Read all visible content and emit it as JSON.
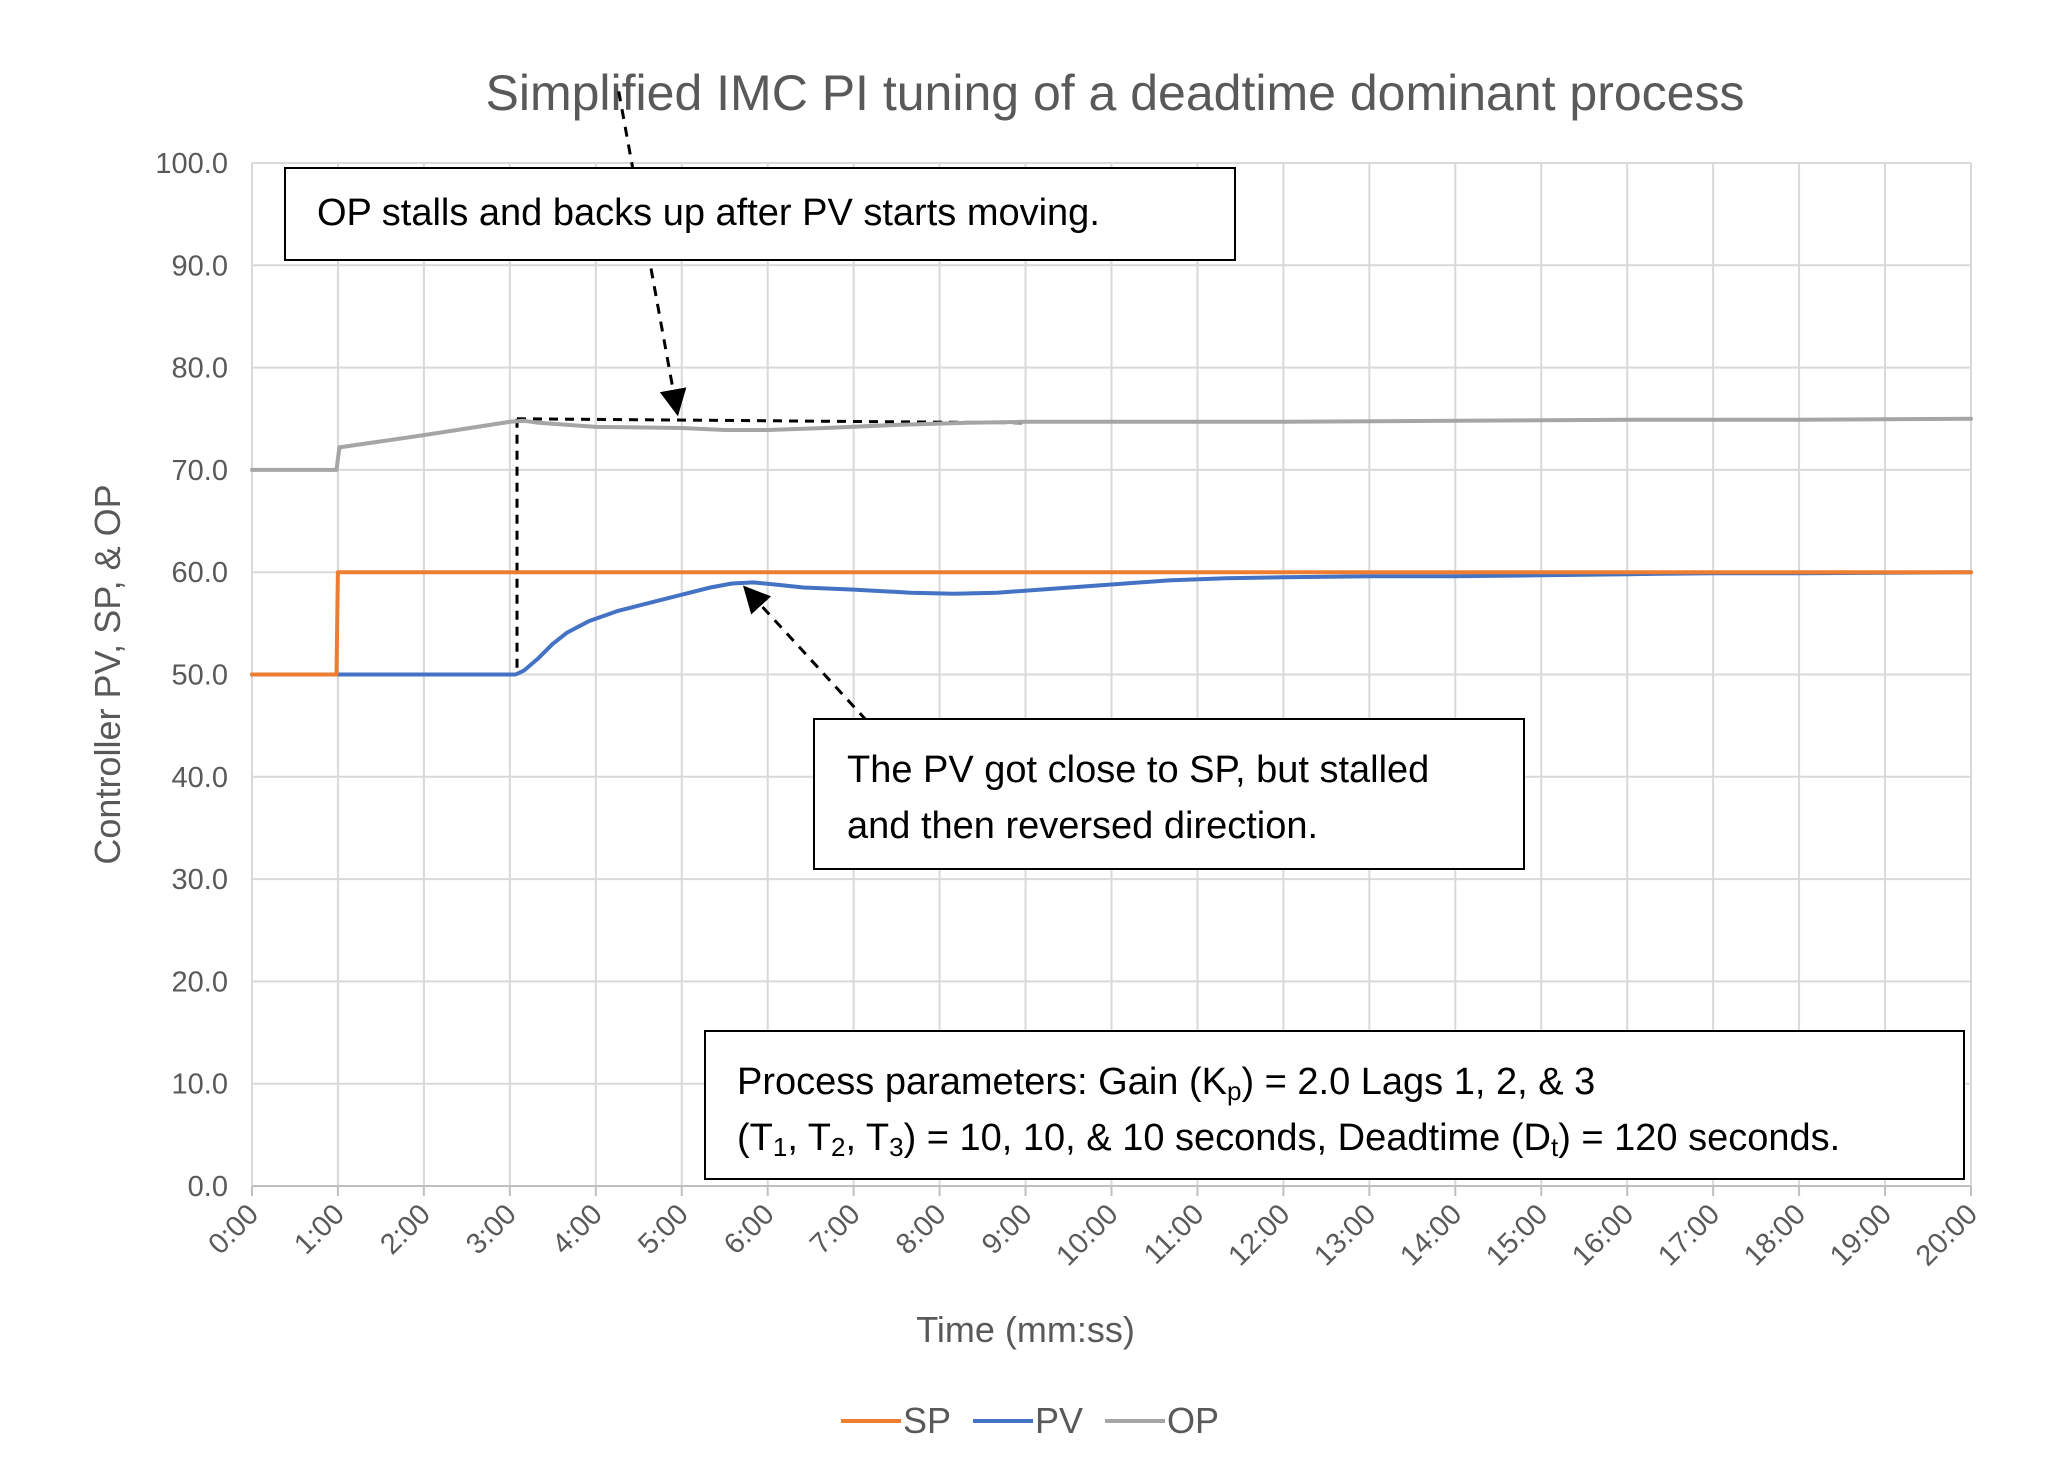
{
  "chart_data": {
    "type": "line",
    "title": "Simplified IMC PI tuning of a deadtime dominant process",
    "xlabel": "Time (mm:ss)",
    "ylabel": "Controller PV, SP, & OP",
    "xlim": [
      0,
      1200
    ],
    "ylim": [
      0,
      100
    ],
    "x_tick_labels": [
      "0:00",
      "1:00",
      "2:00",
      "3:00",
      "4:00",
      "5:00",
      "6:00",
      "7:00",
      "8:00",
      "9:00",
      "10:00",
      "11:00",
      "12:00",
      "13:00",
      "14:00",
      "15:00",
      "16:00",
      "17:00",
      "18:00",
      "19:00",
      "20:00"
    ],
    "y_tick_labels": [
      "0.0",
      "10.0",
      "20.0",
      "30.0",
      "40.0",
      "50.0",
      "60.0",
      "70.0",
      "80.0",
      "90.0",
      "100.0"
    ],
    "grid": true,
    "legend_position": "bottom",
    "series": [
      {
        "name": "SP",
        "color": "#ED7D31",
        "points": [
          [
            0,
            50
          ],
          [
            59,
            50
          ],
          [
            60,
            60
          ],
          [
            1200,
            60
          ]
        ]
      },
      {
        "name": "PV",
        "color": "#4472C4",
        "points": [
          [
            0,
            50
          ],
          [
            184,
            50
          ],
          [
            190,
            50.4
          ],
          [
            200,
            51.6
          ],
          [
            210,
            53
          ],
          [
            220,
            54.1
          ],
          [
            235,
            55.2
          ],
          [
            255,
            56.2
          ],
          [
            280,
            57.1
          ],
          [
            300,
            57.8
          ],
          [
            320,
            58.5
          ],
          [
            335,
            58.9
          ],
          [
            350,
            59.0
          ],
          [
            365,
            58.8
          ],
          [
            385,
            58.5
          ],
          [
            420,
            58.3
          ],
          [
            460,
            58.0
          ],
          [
            490,
            57.9
          ],
          [
            520,
            58.0
          ],
          [
            560,
            58.4
          ],
          [
            600,
            58.8
          ],
          [
            640,
            59.2
          ],
          [
            680,
            59.4
          ],
          [
            720,
            59.5
          ],
          [
            780,
            59.6
          ],
          [
            840,
            59.6
          ],
          [
            900,
            59.7
          ],
          [
            960,
            59.8
          ],
          [
            1020,
            59.9
          ],
          [
            1080,
            59.9
          ],
          [
            1200,
            60.0
          ]
        ]
      },
      {
        "name": "OP",
        "color": "#A5A5A5",
        "points": [
          [
            0,
            70
          ],
          [
            59,
            70
          ],
          [
            61,
            72.2
          ],
          [
            120,
            73.4
          ],
          [
            180,
            74.7
          ],
          [
            190,
            74.8
          ],
          [
            200,
            74.6
          ],
          [
            240,
            74.2
          ],
          [
            300,
            74.1
          ],
          [
            330,
            73.9
          ],
          [
            360,
            73.9
          ],
          [
            400,
            74.1
          ],
          [
            450,
            74.4
          ],
          [
            500,
            74.6
          ],
          [
            540,
            74.7
          ],
          [
            600,
            74.7
          ],
          [
            720,
            74.7
          ],
          [
            840,
            74.8
          ],
          [
            960,
            74.9
          ],
          [
            1080,
            74.9
          ],
          [
            1200,
            75.0
          ]
        ]
      }
    ],
    "annotations": [
      {
        "lines": [
          "OP stalls and backs up after PV starts moving."
        ]
      },
      {
        "lines": [
          "The PV got close to SP, but stalled",
          "and then reversed direction."
        ]
      },
      {
        "lines": [
          "Process parameters:  Gain (K<sub>p</sub>) = 2.0 Lags 1, 2, &amp; 3",
          "(T<sub>1</sub>, T<sub>2</sub>, T<sub>3</sub>) = 10, 10, &amp; 10 seconds, Deadtime (D<sub>t</sub>) = 120 seconds."
        ]
      }
    ],
    "reference_lines": [
      {
        "points": [
          [
            185,
            75
          ],
          [
            185,
            50
          ]
        ]
      },
      {
        "points": [
          [
            185,
            75
          ],
          [
            540,
            74.6
          ]
        ]
      }
    ],
    "arrows": [
      {
        "from_data": [
          256,
          107
        ],
        "to_data": [
          297,
          75.5
        ]
      },
      {
        "from_data": [
          429,
          45.5
        ],
        "to_data": [
          344,
          58.5
        ]
      }
    ]
  }
}
